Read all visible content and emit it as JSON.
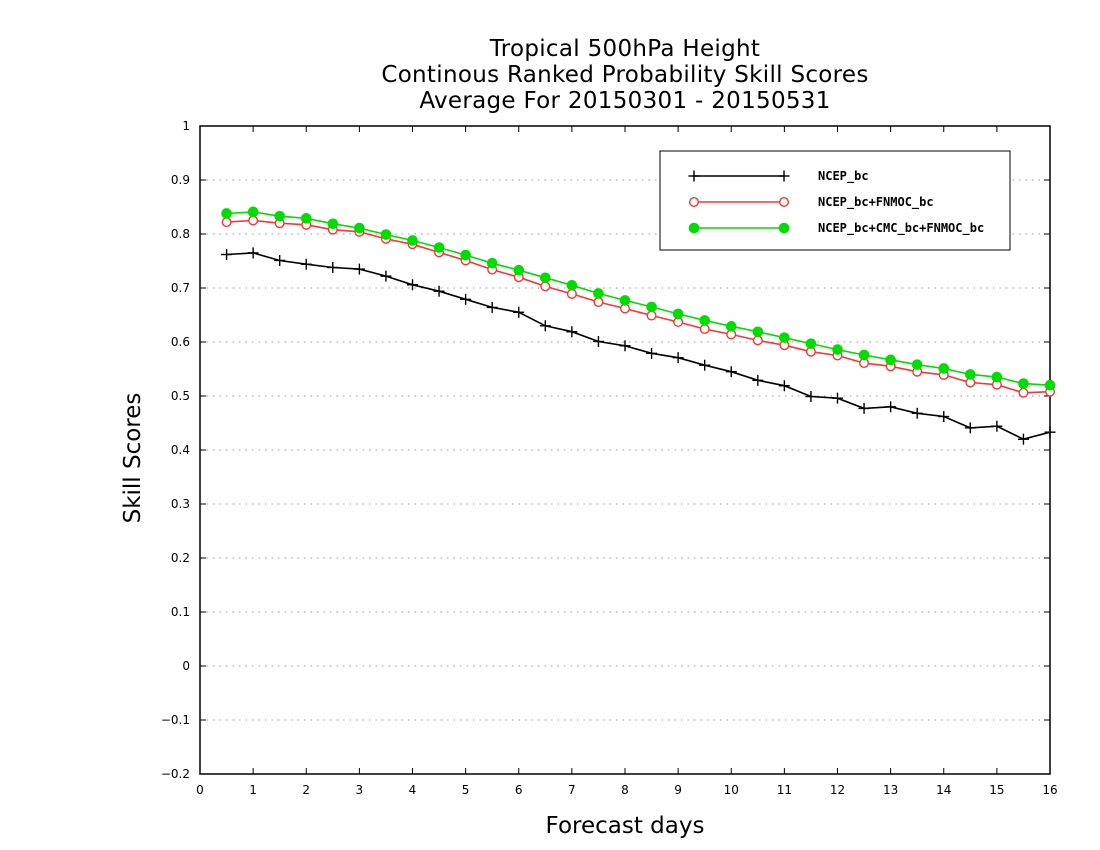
{
  "chart_data": {
    "type": "line",
    "title": [
      "Tropical 500hPa Height",
      "Continous Ranked Probability Skill Scores",
      "Average For 20150301 - 20150531"
    ],
    "xlabel": "Forecast days",
    "ylabel": "Skill Scores",
    "xlim": [
      0,
      16
    ],
    "ylim": [
      -0.2,
      1
    ],
    "xticks": [
      "0",
      "1",
      "2",
      "3",
      "4",
      "5",
      "6",
      "7",
      "8",
      "9",
      "10",
      "11",
      "12",
      "13",
      "14",
      "15",
      "16"
    ],
    "yticks": [
      "−0.2",
      "−0.1",
      "0",
      "0.1",
      "0.2",
      "0.3",
      "0.4",
      "0.5",
      "0.6",
      "0.7",
      "0.8",
      "0.9",
      "1"
    ],
    "grid": "horizontal dotted",
    "legend_position": "top-right",
    "x": [
      0.5,
      1,
      1.5,
      2,
      2.5,
      3,
      3.5,
      4,
      4.5,
      5,
      5.5,
      6,
      6.5,
      7,
      7.5,
      8,
      8.5,
      9,
      9.5,
      10,
      10.5,
      11,
      11.5,
      12,
      12.5,
      13,
      13.5,
      14,
      14.5,
      15,
      15.5,
      16
    ],
    "series": [
      {
        "name": "NCEP_bc",
        "color": "#000000",
        "marker": "plus",
        "values": [
          0.762,
          0.765,
          0.751,
          0.744,
          0.738,
          0.735,
          0.722,
          0.706,
          0.694,
          0.679,
          0.664,
          0.655,
          0.63,
          0.619,
          0.601,
          0.593,
          0.579,
          0.571,
          0.557,
          0.545,
          0.529,
          0.519,
          0.499,
          0.496,
          0.477,
          0.48,
          0.468,
          0.462,
          0.441,
          0.444,
          0.42,
          0.433
        ]
      },
      {
        "name": "NCEP_bc+FNMOC_bc",
        "color": "#ff3333",
        "marker": "open-circle",
        "values": [
          0.822,
          0.825,
          0.82,
          0.817,
          0.808,
          0.804,
          0.791,
          0.781,
          0.766,
          0.751,
          0.734,
          0.72,
          0.703,
          0.689,
          0.674,
          0.662,
          0.649,
          0.637,
          0.624,
          0.614,
          0.603,
          0.594,
          0.582,
          0.575,
          0.561,
          0.555,
          0.545,
          0.539,
          0.525,
          0.521,
          0.506,
          0.508
        ]
      },
      {
        "name": "NCEP_bc+CMC_bc+FNMOC_bc",
        "color": "#00dd00",
        "marker": "filled-circle",
        "values": [
          0.838,
          0.841,
          0.833,
          0.829,
          0.819,
          0.811,
          0.799,
          0.788,
          0.775,
          0.761,
          0.746,
          0.733,
          0.719,
          0.705,
          0.69,
          0.677,
          0.665,
          0.652,
          0.64,
          0.629,
          0.619,
          0.608,
          0.597,
          0.586,
          0.576,
          0.567,
          0.558,
          0.551,
          0.54,
          0.535,
          0.523,
          0.52
        ]
      }
    ]
  }
}
